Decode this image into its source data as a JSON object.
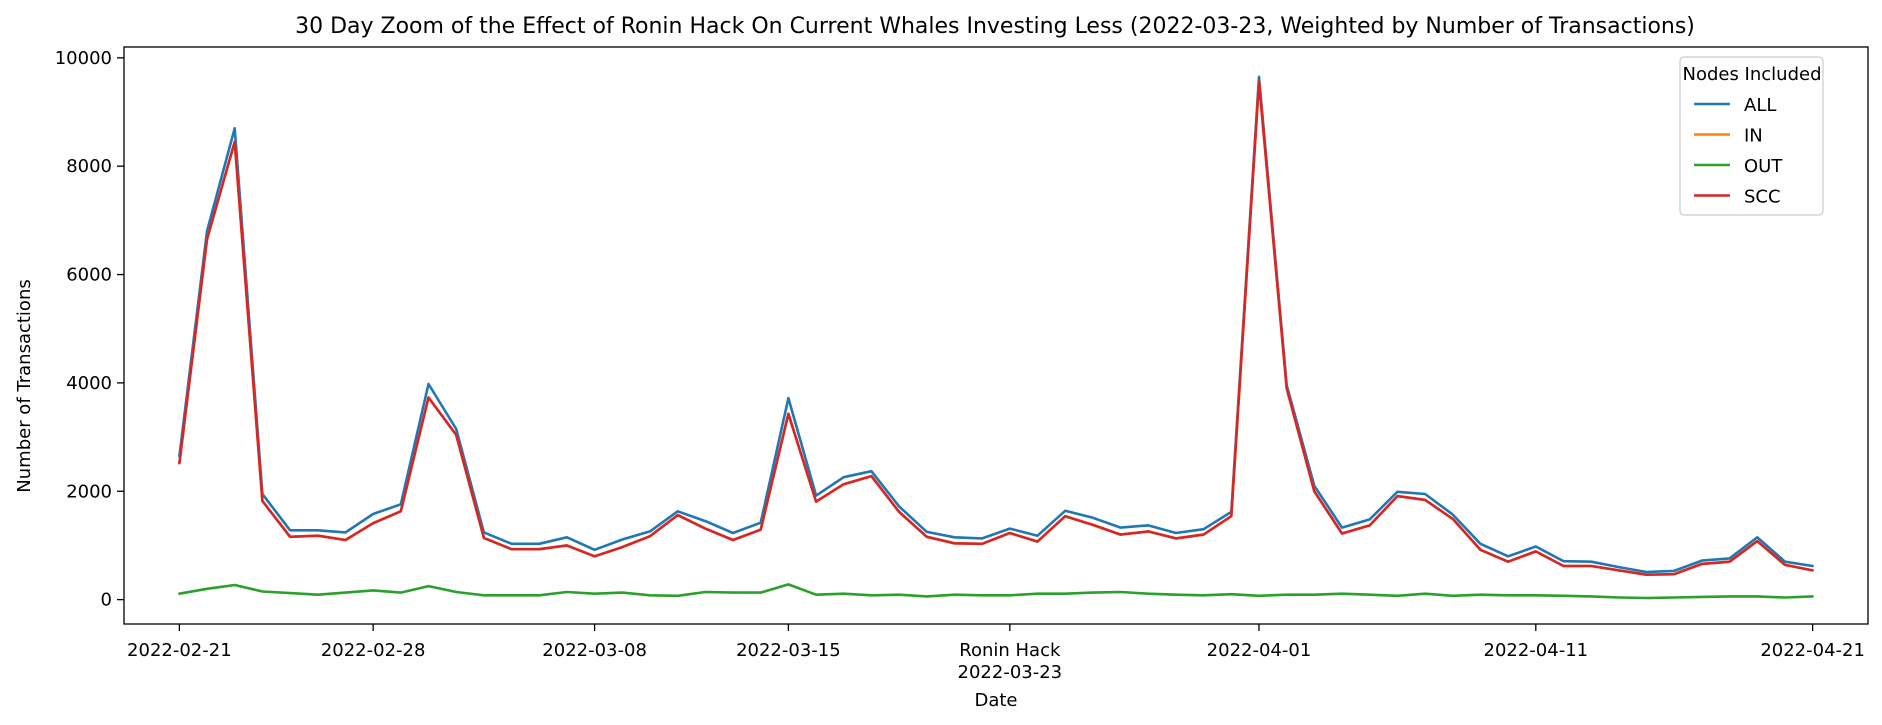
{
  "chart_data": {
    "type": "line",
    "title": "30 Day Zoom of the Effect of Ronin Hack On Current Whales Investing Less (2022-03-23, Weighted by Number of Transactions)",
    "xlabel": "Date",
    "ylabel": "Number of Transactions",
    "ylim": [
      -450,
      10200
    ],
    "xlim": [
      "2022-02-19",
      "2022-04-23"
    ],
    "grid": false,
    "legend": {
      "title": "Nodes Included",
      "placement": "top-right"
    },
    "x_ticks": [
      "2022-02-21",
      "2022-02-28",
      "2022-03-08",
      "2022-03-15",
      "2022-03-23",
      "2022-04-01",
      "2022-04-11",
      "2022-04-21"
    ],
    "x_tick_labels": [
      "2022-02-21",
      "2022-02-28",
      "2022-03-08",
      "2022-03-15",
      "2022-03-23",
      "2022-04-01",
      "2022-04-11",
      "2022-04-21"
    ],
    "y_ticks": [
      0,
      2000,
      4000,
      6000,
      8000,
      10000
    ],
    "y_tick_labels": [
      "0",
      "2000",
      "4000",
      "6000",
      "8000",
      "10000"
    ],
    "annotation": {
      "date": "2022-03-23",
      "text": "Ronin Hack"
    },
    "x": [
      "2022-02-21",
      "2022-02-22",
      "2022-02-23",
      "2022-02-24",
      "2022-02-25",
      "2022-02-26",
      "2022-02-27",
      "2022-02-28",
      "2022-03-01",
      "2022-03-02",
      "2022-03-03",
      "2022-03-04",
      "2022-03-05",
      "2022-03-06",
      "2022-03-07",
      "2022-03-08",
      "2022-03-09",
      "2022-03-10",
      "2022-03-11",
      "2022-03-12",
      "2022-03-13",
      "2022-03-14",
      "2022-03-15",
      "2022-03-16",
      "2022-03-17",
      "2022-03-18",
      "2022-03-19",
      "2022-03-20",
      "2022-03-21",
      "2022-03-22",
      "2022-03-23",
      "2022-03-24",
      "2022-03-25",
      "2022-03-26",
      "2022-03-27",
      "2022-03-28",
      "2022-03-29",
      "2022-03-30",
      "2022-03-31",
      "2022-04-01",
      "2022-04-02",
      "2022-04-03",
      "2022-04-04",
      "2022-04-05",
      "2022-04-06",
      "2022-04-07",
      "2022-04-08",
      "2022-04-09",
      "2022-04-10",
      "2022-04-11",
      "2022-04-12",
      "2022-04-13",
      "2022-04-14",
      "2022-04-15",
      "2022-04-16",
      "2022-04-17",
      "2022-04-18",
      "2022-04-19",
      "2022-04-20",
      "2022-04-21"
    ],
    "series": [
      {
        "name": "ALL",
        "color": "#1f77b4",
        "values": [
          2650,
          6800,
          8700,
          1950,
          1280,
          1280,
          1240,
          1580,
          1760,
          3980,
          3150,
          1240,
          1030,
          1030,
          1150,
          920,
          1110,
          1260,
          1630,
          1450,
          1230,
          1420,
          3720,
          1920,
          2260,
          2370,
          1720,
          1250,
          1150,
          1130,
          1310,
          1180,
          1640,
          1510,
          1330,
          1370,
          1230,
          1300,
          1620,
          9650,
          3960,
          2100,
          1330,
          1480,
          1990,
          1950,
          1570,
          1030,
          800,
          980,
          710,
          700,
          600,
          510,
          530,
          720,
          760,
          1150,
          700,
          620
        ]
      },
      {
        "name": "IN",
        "color": "#ff7f0e",
        "values": [
          2520,
          6650,
          8450,
          1820,
          1160,
          1180,
          1100,
          1410,
          1630,
          3730,
          3040,
          1140,
          930,
          930,
          1000,
          800,
          970,
          1170,
          1560,
          1310,
          1100,
          1290,
          3430,
          1810,
          2130,
          2280,
          1620,
          1160,
          1040,
          1030,
          1230,
          1070,
          1540,
          1380,
          1200,
          1260,
          1130,
          1200,
          1540,
          9560,
          3900,
          2000,
          1220,
          1370,
          1910,
          1840,
          1490,
          920,
          700,
          890,
          620,
          620,
          540,
          460,
          470,
          660,
          700,
          1080,
          640,
          540
        ]
      },
      {
        "name": "OUT",
        "color": "#2ca02c",
        "values": [
          110,
          200,
          270,
          150,
          120,
          90,
          130,
          170,
          130,
          250,
          140,
          80,
          80,
          80,
          140,
          110,
          130,
          80,
          70,
          140,
          130,
          130,
          280,
          90,
          110,
          80,
          90,
          60,
          90,
          80,
          80,
          110,
          110,
          130,
          140,
          110,
          90,
          80,
          100,
          70,
          90,
          90,
          110,
          90,
          70,
          110,
          70,
          90,
          80,
          80,
          70,
          60,
          40,
          30,
          40,
          50,
          60,
          60,
          40,
          60
        ]
      },
      {
        "name": "SCC",
        "color": "#d62728",
        "values": [
          2520,
          6650,
          8450,
          1820,
          1160,
          1180,
          1100,
          1410,
          1630,
          3730,
          3040,
          1140,
          930,
          930,
          1000,
          800,
          970,
          1170,
          1560,
          1310,
          1100,
          1290,
          3430,
          1810,
          2130,
          2280,
          1620,
          1160,
          1040,
          1030,
          1230,
          1070,
          1540,
          1380,
          1200,
          1260,
          1130,
          1200,
          1540,
          9560,
          3900,
          2000,
          1220,
          1370,
          1910,
          1840,
          1490,
          920,
          700,
          890,
          620,
          620,
          540,
          460,
          470,
          660,
          700,
          1080,
          640,
          540
        ]
      }
    ]
  }
}
